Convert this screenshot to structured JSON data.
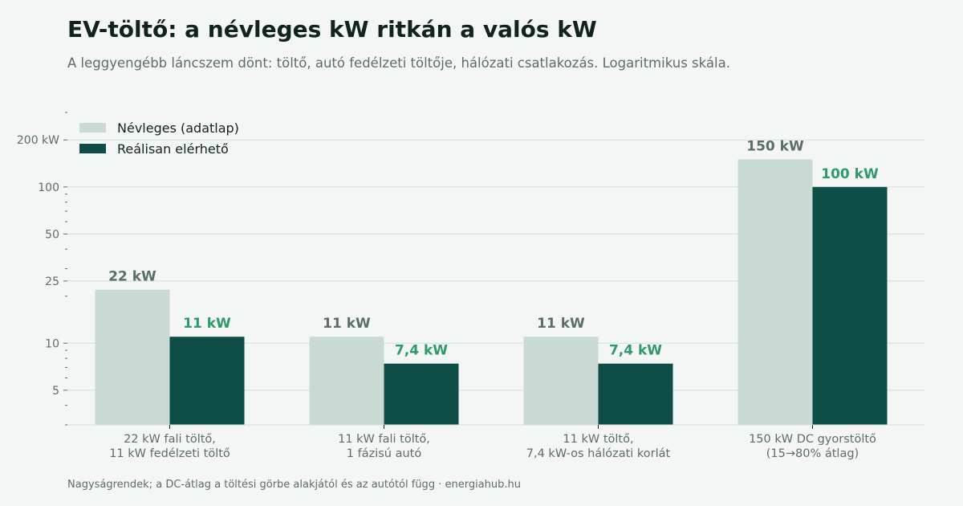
{
  "header": {
    "title": "EV-töltő: a névleges kW ritkán a valós kW",
    "subtitle": "A leggyengébb láncszem dönt: töltő, autó fedélzeti töltője, hálózati csatlakozás. Logaritmikus skála."
  },
  "footer": {
    "text": "Nagyságrendek; a DC-átlag a töltési görbe alakjától és az autótól függ  ·  energiahub.hu"
  },
  "colors": {
    "nominal": "#c9d9d4",
    "real": "#0f4d49",
    "nominal_label": "#5b6e69",
    "real_label": "#2e9a6b",
    "grid": "#d3dddb",
    "axis_text": "#5b6e69"
  },
  "chart_data": {
    "type": "bar",
    "yscale": "log",
    "ylim": [
      3,
      300
    ],
    "grid": true,
    "legend_position": "top-left",
    "yticks": [
      {
        "value": 5,
        "label": "5"
      },
      {
        "value": 10,
        "label": "10"
      },
      {
        "value": 25,
        "label": "25"
      },
      {
        "value": 50,
        "label": "50"
      },
      {
        "value": 100,
        "label": "100"
      },
      {
        "value": 200,
        "label": "200 kW"
      }
    ],
    "categories": [
      [
        "22 kW fali töltő,",
        "11 kW fedélzeti töltő"
      ],
      [
        "11 kW fali töltő,",
        "1 fázisú autó"
      ],
      [
        "11 kW töltő,",
        "7,4 kW-os hálózati korlát"
      ],
      [
        "150 kW DC gyorstöltő",
        "(15→80% átlag)"
      ]
    ],
    "series": [
      {
        "name": "Névleges (adatlap)",
        "values": [
          22,
          11,
          11,
          150
        ],
        "labels": [
          "22 kW",
          "11 kW",
          "11 kW",
          "150 kW"
        ]
      },
      {
        "name": "Reálisan elérhető",
        "values": [
          11,
          7.4,
          7.4,
          100
        ],
        "labels": [
          "11 kW",
          "7,4 kW",
          "7,4 kW",
          "100 kW"
        ]
      }
    ]
  }
}
